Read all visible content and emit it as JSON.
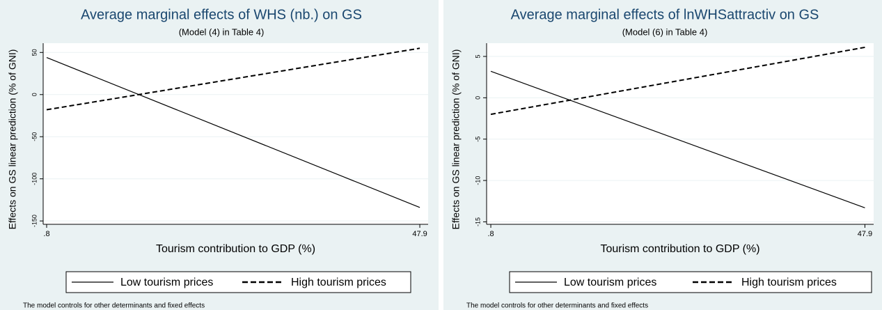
{
  "chart_data": [
    {
      "type": "line",
      "title": "Average marginal effects of WHS (nb.) on GS",
      "subtitle": "(Model (4) in Table 4)",
      "xlabel": "Tourism contribution to GDP (%)",
      "ylabel": "Effects on GS linear prediction (% of GNI)",
      "note": "The model controls for other determinants and fixed effects",
      "x": [
        0.8,
        47.9
      ],
      "series": [
        {
          "name": "Low tourism prices",
          "color": "#000000",
          "style": "solid",
          "values": [
            44,
            -134
          ]
        },
        {
          "name": "High tourism prices",
          "color": "#000000",
          "style": "dashed",
          "values": [
            -18,
            55
          ]
        }
      ],
      "xlim": [
        0.36,
        48.95
      ],
      "xticks": [
        {
          "value": 0.8,
          "label": ".8"
        },
        47.9
      ],
      "ylim": [
        -154,
        61
      ],
      "yticks": [
        -150,
        -100,
        -50,
        0,
        50
      ],
      "grid": true,
      "legend": "bottom"
    },
    {
      "type": "line",
      "title": "Average marginal effects of lnWHSattractiv on GS",
      "subtitle": "(Model (6) in Table 4)",
      "xlabel": "Tourism contribution to GDP (%)",
      "ylabel": "Effects on GS linear prediction (% of GNI)",
      "note": "The model controls for other determinants and fixed effects",
      "x": [
        0.8,
        47.9
      ],
      "series": [
        {
          "name": "Low tourism prices",
          "color": "#000000",
          "style": "solid",
          "values": [
            3.2,
            -13.3
          ]
        },
        {
          "name": "High tourism prices",
          "color": "#000000",
          "style": "dashed",
          "values": [
            -2,
            6.1
          ]
        }
      ],
      "xlim": [
        0.27,
        49.0
      ],
      "xticks": [
        {
          "value": 0.8,
          "label": ".8"
        },
        47.9
      ],
      "ylim": [
        -15.3,
        6.6
      ],
      "yticks": [
        -15,
        -10,
        -5,
        0,
        5
      ],
      "grid": true,
      "legend": "bottom"
    }
  ]
}
